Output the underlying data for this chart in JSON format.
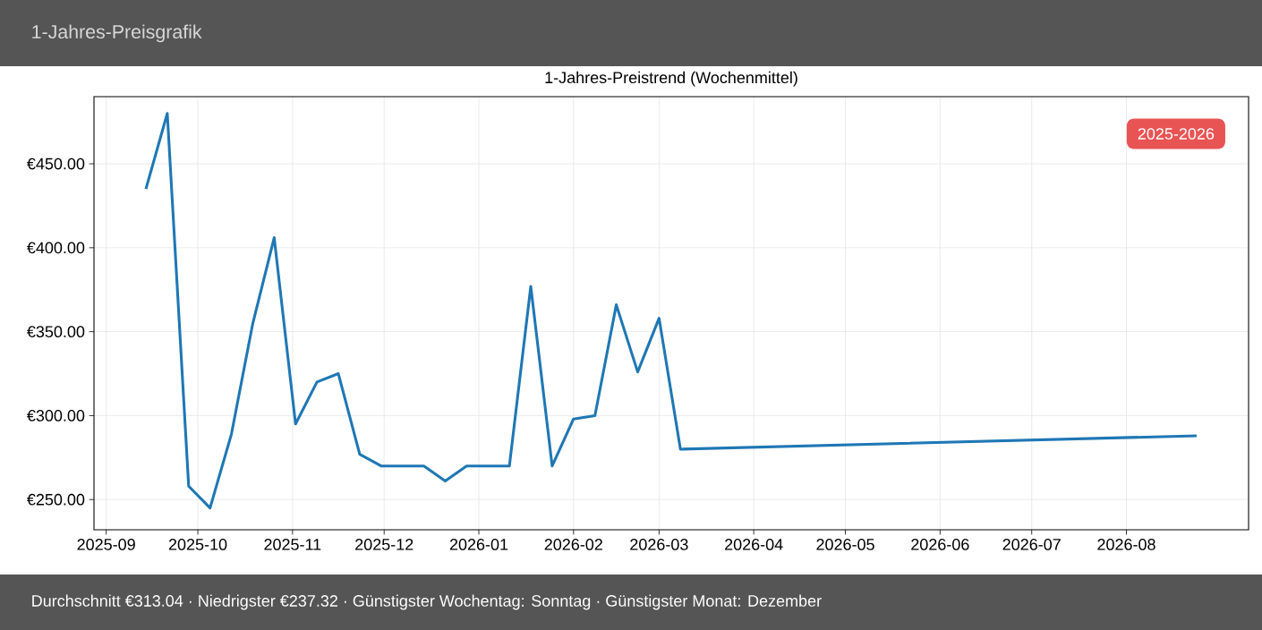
{
  "chart_data": {
    "type": "line",
    "title": "1-Jahres-Preistrend (Wochenmittel)",
    "subtitle": "1-Jahres-Preisgrafik",
    "annotations": [
      "2025-2026",
      "Durchschnitt €313.04  ·  Niedrigster €237.32  ·  Günstigster Wochentag: Sonntag  ·  Günstigster Monat: Dezember"
    ],
    "x": [
      "2025-09-14",
      "2025-09-21",
      "2025-09-28",
      "2025-10-05",
      "2025-10-12",
      "2025-10-19",
      "2025-10-26",
      "2025-11-02",
      "2025-11-09",
      "2025-11-16",
      "2025-11-23",
      "2025-11-30",
      "2025-12-07",
      "2025-12-14",
      "2025-12-21",
      "2025-12-28",
      "2026-01-04",
      "2026-01-11",
      "2026-01-18",
      "2026-01-25",
      "2026-02-01",
      "2026-02-08",
      "2026-02-15",
      "2026-02-22",
      "2026-03-01",
      "2026-03-08",
      "2026-08-24"
    ],
    "values": [
      435,
      480,
      258,
      245,
      289,
      355,
      406,
      295,
      320,
      325,
      277,
      270,
      270,
      270,
      261,
      270,
      270,
      270,
      377,
      270,
      298,
      300,
      366,
      326,
      358,
      280,
      288
    ],
    "color": "#1f77b4",
    "xlim": [
      "2025-08-28",
      "2026-09-10"
    ],
    "ylim": [
      232,
      490
    ],
    "xticks": [
      "2025-09",
      "2025-10",
      "2025-11",
      "2025-12",
      "2026-01",
      "2026-02",
      "2026-03",
      "2026-04",
      "2026-05",
      "2026-06",
      "2026-07",
      "2026-08"
    ],
    "yticks": [
      {
        "value": 250,
        "label": "€250.00"
      },
      {
        "value": 300,
        "label": "€300.00"
      },
      {
        "value": 350,
        "label": "€350.00"
      },
      {
        "value": 400,
        "label": "€400.00"
      },
      {
        "value": 450,
        "label": "€450.00"
      }
    ],
    "grid": true
  }
}
